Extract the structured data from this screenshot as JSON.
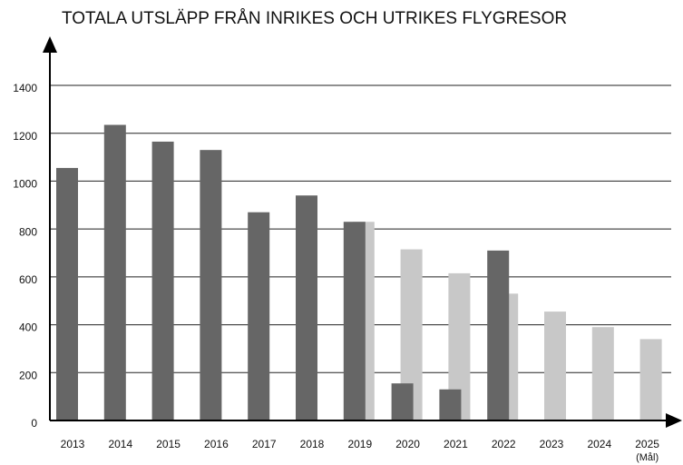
{
  "chart_data": {
    "type": "bar",
    "title": "TOTALA UTSLÄPP FRÅN INRIKES OCH UTRIKES FLYGRESOR",
    "categories": [
      "2013",
      "2014",
      "2015",
      "2016",
      "2017",
      "2018",
      "2019",
      "2020",
      "2021",
      "2022",
      "2023",
      "2024",
      "2025"
    ],
    "x_note": "(Mål)",
    "series": [
      {
        "color": "#666666",
        "values": [
          1055,
          1235,
          1165,
          1130,
          870,
          940,
          830,
          155,
          130,
          710,
          null,
          null,
          null
        ]
      },
      {
        "color": "#c8c8c8",
        "values": [
          null,
          null,
          null,
          null,
          null,
          null,
          830,
          715,
          615,
          530,
          455,
          390,
          340
        ]
      }
    ],
    "ylim": [
      0,
      1400
    ],
    "yticks": [
      0,
      200,
      400,
      600,
      800,
      1000,
      1200,
      1400
    ],
    "grid": true
  }
}
